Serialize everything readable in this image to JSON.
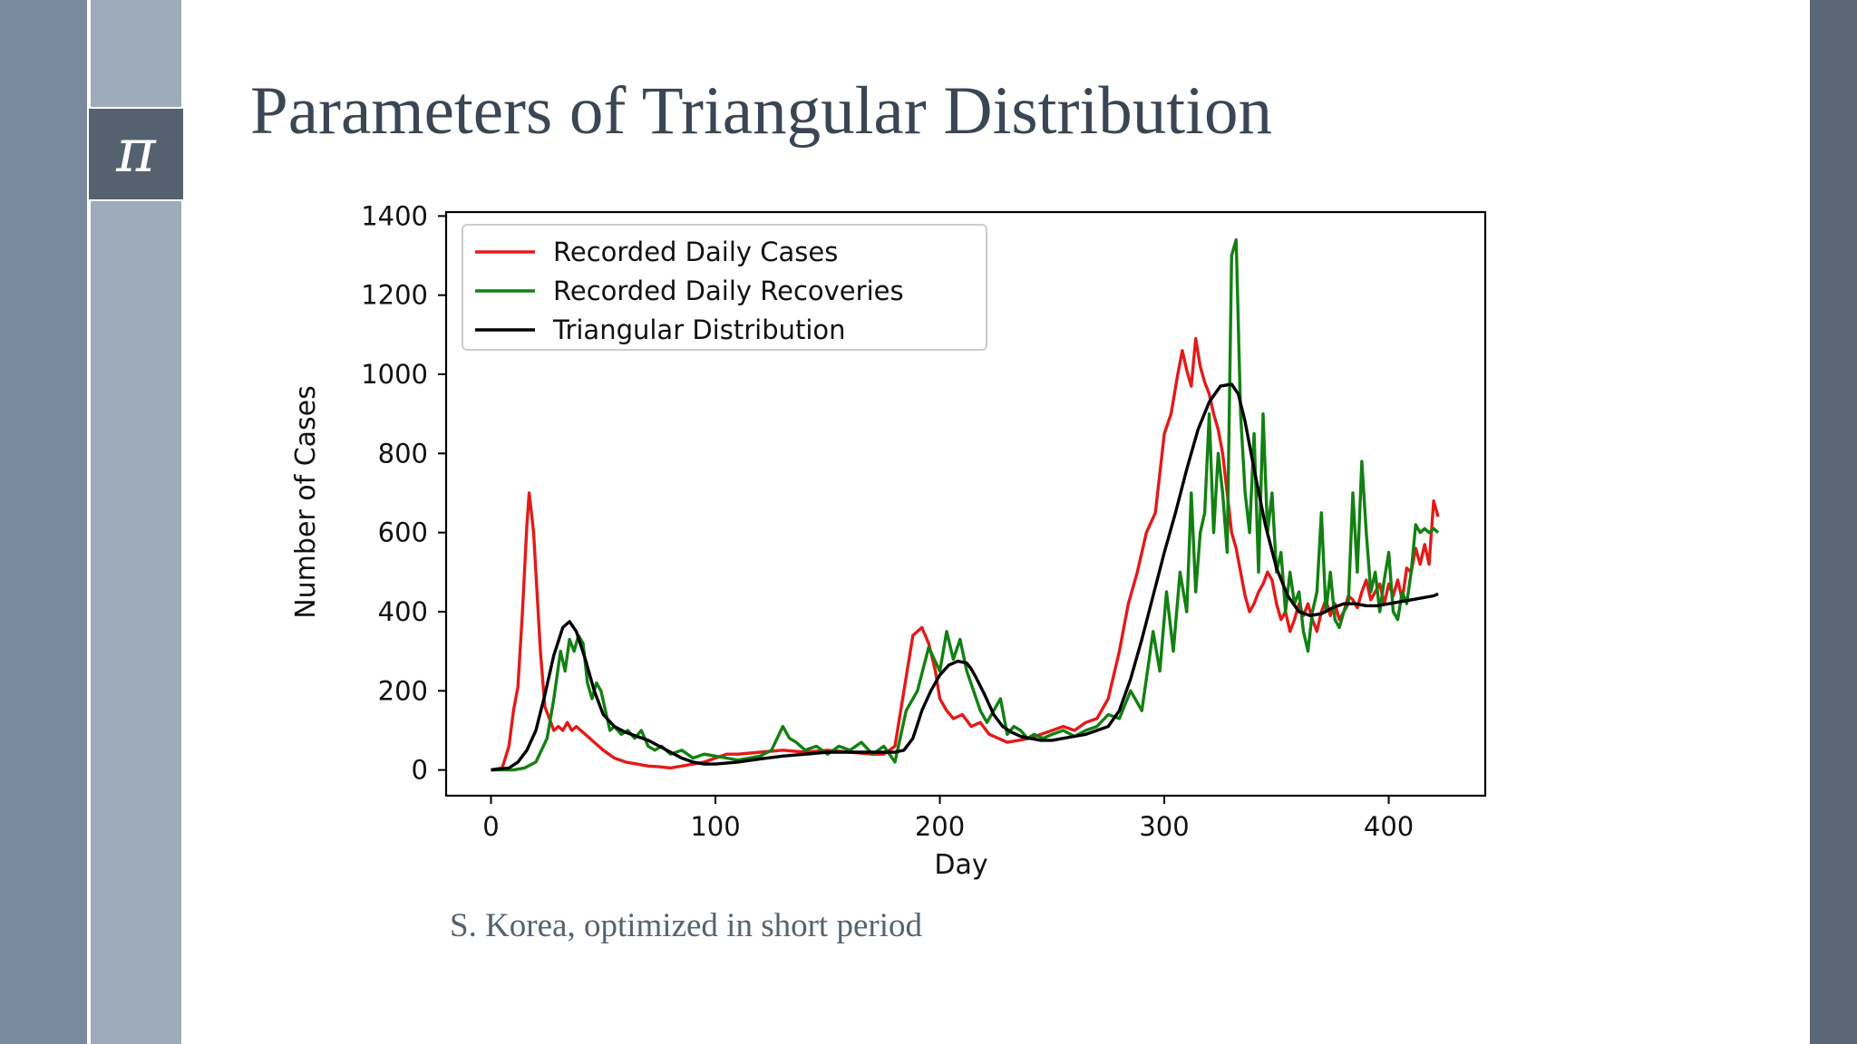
{
  "slide": {
    "title": "Parameters of Triangular Distribution",
    "pi_symbol": "π",
    "pi_icon": "pi-icon",
    "caption": "S. Korea, optimized in short period",
    "colors": {
      "band_left": "#7a8a9e",
      "band_mid": "#9eabb9",
      "band_right": "#5b6776",
      "title": "#3a4653"
    }
  },
  "chart_data": {
    "type": "line",
    "xlabel": "Day",
    "ylabel": "Number of Cases",
    "xlim": [
      -20,
      443
    ],
    "ylim": [
      -65,
      1410
    ],
    "xticks": [
      0,
      100,
      200,
      300,
      400
    ],
    "yticks": [
      0,
      200,
      400,
      600,
      800,
      1000,
      1200,
      1400
    ],
    "grid": false,
    "legend_position": "top-left",
    "series": [
      {
        "name": "Recorded Daily Cases",
        "color": "#e31a1a",
        "x": [
          0,
          5,
          8,
          10,
          12,
          14,
          16,
          17,
          18,
          19,
          20,
          22,
          24,
          26,
          28,
          30,
          32,
          34,
          36,
          38,
          40,
          42,
          44,
          46,
          48,
          50,
          55,
          60,
          65,
          70,
          75,
          80,
          85,
          90,
          95,
          100,
          105,
          110,
          120,
          130,
          140,
          150,
          160,
          170,
          175,
          180,
          184,
          188,
          192,
          195,
          198,
          200,
          203,
          206,
          210,
          214,
          218,
          222,
          226,
          230,
          235,
          240,
          245,
          250,
          255,
          260,
          265,
          270,
          275,
          280,
          284,
          288,
          292,
          296,
          300,
          303,
          306,
          308,
          310,
          312,
          314,
          316,
          318,
          320,
          322,
          324,
          326,
          328,
          330,
          332,
          334,
          336,
          338,
          340,
          342,
          344,
          346,
          348,
          350,
          352,
          354,
          356,
          358,
          360,
          362,
          364,
          366,
          368,
          370,
          372,
          374,
          376,
          378,
          380,
          382,
          384,
          386,
          388,
          390,
          392,
          394,
          396,
          398,
          400,
          402,
          404,
          406,
          408,
          410,
          412,
          414,
          416,
          418,
          420,
          422
        ],
        "y": [
          0,
          5,
          60,
          150,
          210,
          400,
          620,
          700,
          650,
          600,
          500,
          300,
          160,
          130,
          100,
          110,
          100,
          120,
          100,
          110,
          100,
          90,
          80,
          70,
          60,
          50,
          30,
          20,
          15,
          10,
          8,
          5,
          10,
          15,
          20,
          30,
          40,
          40,
          45,
          50,
          45,
          50,
          45,
          40,
          40,
          60,
          200,
          340,
          360,
          320,
          250,
          180,
          150,
          130,
          140,
          110,
          120,
          90,
          80,
          70,
          75,
          80,
          90,
          100,
          110,
          100,
          120,
          130,
          180,
          300,
          420,
          500,
          600,
          650,
          850,
          900,
          1000,
          1060,
          1010,
          970,
          1090,
          1020,
          980,
          950,
          900,
          860,
          800,
          700,
          600,
          560,
          500,
          440,
          400,
          420,
          450,
          470,
          500,
          480,
          420,
          380,
          400,
          350,
          380,
          420,
          390,
          420,
          380,
          350,
          400,
          430,
          390,
          420,
          380,
          400,
          440,
          430,
          410,
          450,
          480,
          430,
          450,
          470,
          420,
          470,
          440,
          480,
          430,
          510,
          500,
          560,
          520,
          570,
          520,
          680,
          640
        ]
      },
      {
        "name": "Recorded Daily Recoveries",
        "color": "#128012",
        "x": [
          0,
          10,
          15,
          20,
          25,
          28,
          31,
          33,
          35,
          37,
          39,
          41,
          43,
          45,
          47,
          49,
          51,
          53,
          55,
          58,
          61,
          64,
          67,
          70,
          73,
          76,
          80,
          85,
          90,
          95,
          100,
          105,
          110,
          115,
          120,
          125,
          130,
          133,
          136,
          140,
          145,
          150,
          155,
          160,
          165,
          170,
          175,
          180,
          185,
          190,
          195,
          200,
          203,
          206,
          209,
          212,
          215,
          218,
          221,
          224,
          227,
          230,
          233,
          236,
          239,
          242,
          246,
          250,
          255,
          260,
          265,
          270,
          275,
          280,
          285,
          290,
          295,
          298,
          301,
          304,
          307,
          310,
          312,
          314,
          316,
          318,
          320,
          322,
          324,
          326,
          328,
          330,
          332,
          334,
          336,
          338,
          340,
          342,
          344,
          346,
          348,
          350,
          352,
          354,
          356,
          358,
          360,
          362,
          364,
          366,
          368,
          370,
          372,
          374,
          376,
          378,
          380,
          382,
          384,
          386,
          388,
          390,
          392,
          394,
          396,
          398,
          400,
          402,
          404,
          406,
          408,
          410,
          412,
          414,
          416,
          418,
          420,
          422
        ],
        "y": [
          0,
          0,
          5,
          20,
          80,
          180,
          300,
          250,
          330,
          300,
          340,
          320,
          220,
          180,
          220,
          200,
          150,
          100,
          110,
          90,
          100,
          80,
          100,
          60,
          50,
          60,
          40,
          50,
          30,
          40,
          35,
          30,
          25,
          30,
          35,
          50,
          110,
          80,
          70,
          50,
          60,
          40,
          60,
          50,
          70,
          40,
          60,
          20,
          150,
          200,
          310,
          250,
          350,
          280,
          330,
          250,
          200,
          150,
          120,
          150,
          180,
          90,
          110,
          100,
          80,
          90,
          80,
          90,
          100,
          85,
          100,
          110,
          140,
          130,
          200,
          150,
          350,
          250,
          450,
          300,
          500,
          400,
          700,
          450,
          600,
          650,
          900,
          600,
          800,
          700,
          550,
          1300,
          1340,
          900,
          700,
          600,
          850,
          500,
          900,
          600,
          700,
          500,
          550,
          400,
          500,
          420,
          450,
          350,
          300,
          400,
          450,
          650,
          400,
          500,
          380,
          360,
          400,
          420,
          700,
          500,
          780,
          600,
          450,
          500,
          400,
          480,
          550,
          400,
          380,
          450,
          420,
          500,
          620,
          600,
          610,
          600,
          610,
          600
        ]
      },
      {
        "name": "Triangular Distribution",
        "color": "#000000",
        "x": [
          0,
          8,
          12,
          16,
          20,
          24,
          28,
          32,
          35,
          38,
          42,
          46,
          50,
          55,
          60,
          65,
          70,
          75,
          80,
          85,
          90,
          95,
          100,
          110,
          120,
          130,
          140,
          150,
          160,
          170,
          180,
          184,
          188,
          192,
          196,
          200,
          204,
          208,
          212,
          214,
          216,
          220,
          224,
          228,
          232,
          236,
          240,
          245,
          250,
          255,
          260,
          265,
          270,
          275,
          280,
          285,
          290,
          295,
          300,
          305,
          310,
          315,
          320,
          325,
          330,
          333,
          336,
          340,
          345,
          350,
          355,
          360,
          365,
          370,
          375,
          380,
          385,
          390,
          395,
          400,
          405,
          410,
          415,
          420,
          422
        ],
        "y": [
          0,
          5,
          20,
          50,
          100,
          190,
          290,
          360,
          375,
          350,
          280,
          200,
          140,
          110,
          95,
          85,
          75,
          60,
          45,
          30,
          20,
          15,
          15,
          20,
          28,
          35,
          40,
          45,
          45,
          45,
          45,
          50,
          80,
          150,
          200,
          240,
          265,
          275,
          270,
          255,
          235,
          190,
          140,
          110,
          95,
          85,
          80,
          75,
          75,
          80,
          85,
          90,
          100,
          110,
          150,
          230,
          330,
          440,
          550,
          650,
          760,
          860,
          930,
          970,
          975,
          950,
          880,
          760,
          620,
          510,
          440,
          400,
          390,
          395,
          410,
          420,
          420,
          415,
          415,
          420,
          425,
          430,
          435,
          440,
          445
        ]
      }
    ]
  }
}
